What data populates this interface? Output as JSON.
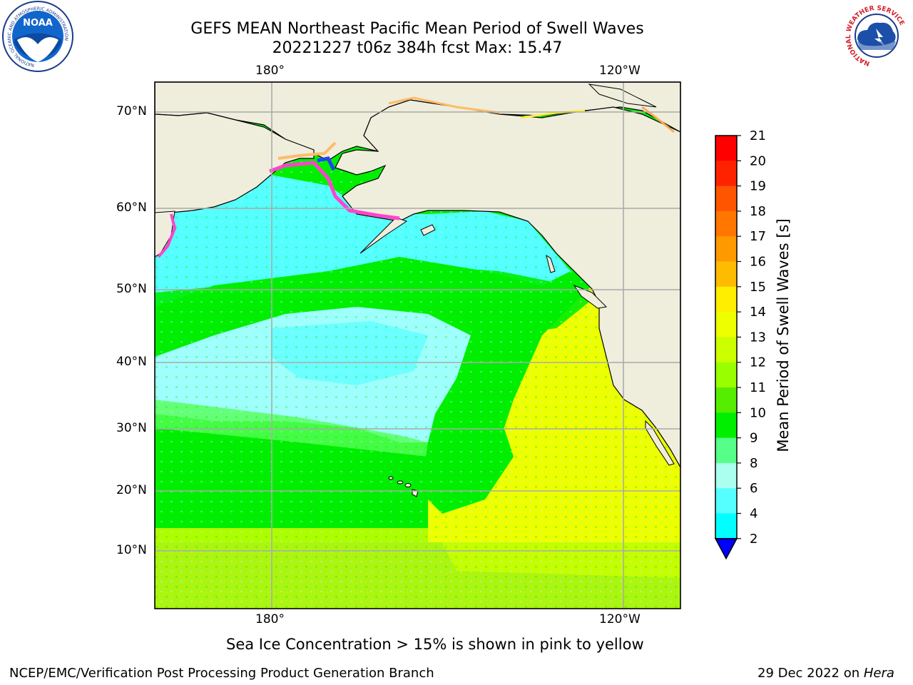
{
  "title": {
    "line1": "GEFS MEAN Northeast Pacific Mean Period of Swell Waves",
    "line2": "20221227 t06z 384h fcst   Max: 15.47"
  },
  "map": {
    "top_lon_labels": [
      "180°",
      "120°W"
    ],
    "bottom_lon_labels": [
      "180°",
      "120°W"
    ],
    "lat_labels": [
      "70°N",
      "60°N",
      "50°N",
      "40°N",
      "30°N",
      "20°N",
      "10°N"
    ],
    "land_color": "#efeddc",
    "ocean_colors": {
      "cyan": "#55ffff",
      "light_cyan": "#9ffffd",
      "green": "#00ee00",
      "light_green": "#55ff55",
      "yellow_green": "#ccff00",
      "yellow": "#eeff00",
      "ice_pink": "#ff44cc"
    }
  },
  "colorbar": {
    "label": "Mean Period of Swell Waves [s]",
    "ticks": [
      "21",
      "20",
      "19",
      "18",
      "17",
      "16",
      "15",
      "14",
      "13",
      "12",
      "11",
      "10",
      "9",
      "8",
      "6",
      "4",
      "2"
    ],
    "colors_top_to_bottom": [
      "#ff0000",
      "#ff2200",
      "#ff5500",
      "#ff7700",
      "#ff9900",
      "#ffbb00",
      "#ffee00",
      "#eeff00",
      "#ccff00",
      "#99ff00",
      "#55ee00",
      "#00ee00",
      "#55ff88",
      "#aaffee",
      "#55ffff",
      "#00ffff",
      "#00eeff",
      "#0077ff"
    ],
    "extend_color": "#0000ff"
  },
  "note": "Sea Ice Concentration > 15% is shown in pink to yellow",
  "footer": {
    "left": "NCEP/EMC/Verification Post Processing Product Generation Branch",
    "right_date": "29 Dec 2022 on",
    "right_host": "Hera"
  },
  "logos": {
    "noaa_text": "NOAA",
    "noaa_ring": "NATIONAL OCEANIC AND ATMOSPHERIC ADMINISTRATION",
    "nws_ring": "NATIONAL WEATHER SERVICE"
  }
}
